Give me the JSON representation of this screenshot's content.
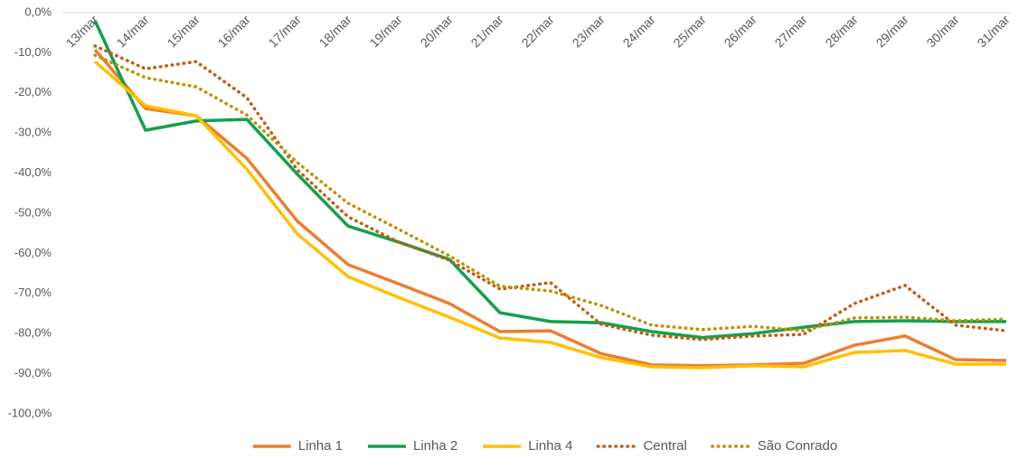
{
  "chart_data": {
    "type": "line",
    "categories": [
      "13/mar",
      "14/mar",
      "15/mar",
      "16/mar",
      "17/mar",
      "18/mar",
      "19/mar",
      "20/mar",
      "21/mar",
      "22/mar",
      "23/mar",
      "24/mar",
      "25/mar",
      "26/mar",
      "27/mar",
      "28/mar",
      "29/mar",
      "30/mar",
      "31/mar"
    ],
    "series": [
      {
        "name": "Linha 1",
        "color": "#ED7D31",
        "style": "solid",
        "values": [
          -9.2,
          -23.9,
          -25.7,
          -36.3,
          -52,
          -62.8,
          -67.6,
          -72.5,
          -79.5,
          -79.3,
          -85,
          -87.8,
          -88,
          -87.8,
          -87.4,
          -82.9,
          -80.6,
          -86.5,
          -86.7
        ]
      },
      {
        "name": "Linha 2",
        "color": "#13A04D",
        "style": "solid",
        "values": [
          -2,
          -29.3,
          -27,
          -26.6,
          -40.3,
          -53.2,
          -57.2,
          -61.5,
          -74.8,
          -77,
          -77.3,
          -79.5,
          -81,
          -80,
          -78.4,
          -77,
          -76.8,
          -77,
          -77
        ]
      },
      {
        "name": "Linha 4",
        "color": "#FFC000",
        "style": "solid",
        "values": [
          -12.2,
          -23.2,
          -25.7,
          -39,
          -55.2,
          -65.8,
          -71,
          -75.9,
          -81.1,
          -82.2,
          -86,
          -88.3,
          -88.5,
          -88,
          -88.3,
          -84.7,
          -84.2,
          -87.6,
          -87.6
        ]
      },
      {
        "name": "Central",
        "color": "#C55A11",
        "style": "dotted",
        "values": [
          -8.3,
          -14,
          -12.2,
          -21.2,
          -39.2,
          -50.9,
          -57.2,
          -61.7,
          -68.9,
          -67.3,
          -77.7,
          -80.4,
          -81.5,
          -80.6,
          -80.2,
          -72.5,
          -68,
          -77.9,
          -79.3
        ]
      },
      {
        "name": "São Conrado",
        "color": "#BF9000",
        "style": "dotted",
        "values": [
          -10.6,
          -16.2,
          -18.5,
          -25.5,
          -37.4,
          -47.5,
          -54,
          -60.6,
          -68.2,
          -69.4,
          -73,
          -77.9,
          -79,
          -78.2,
          -79.3,
          -76.1,
          -75.9,
          -76.8,
          -76.4
        ]
      }
    ],
    "ylim": [
      -100,
      0
    ],
    "yticks": [
      {
        "value": 0,
        "label": "0,0%"
      },
      {
        "value": -10,
        "label": "-10,0%"
      },
      {
        "value": -20,
        "label": "-20,0%"
      },
      {
        "value": -30,
        "label": "-30,0%"
      },
      {
        "value": -40,
        "label": "-40,0%"
      },
      {
        "value": -50,
        "label": "-50,0%"
      },
      {
        "value": -60,
        "label": "-60,0%"
      },
      {
        "value": -70,
        "label": "-70,0%"
      },
      {
        "value": -80,
        "label": "-80,0%"
      },
      {
        "value": -90,
        "label": "-90,0%"
      },
      {
        "value": -100,
        "label": "-100,0%"
      }
    ],
    "grid": false,
    "legend": "bottom"
  }
}
